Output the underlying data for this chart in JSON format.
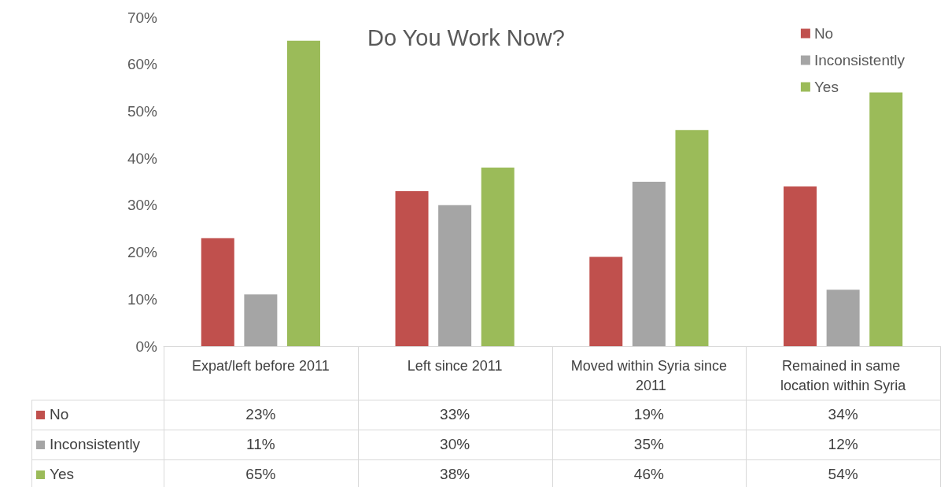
{
  "chart_data": {
    "type": "bar",
    "title": "Do You Work Now?",
    "categories": [
      "Expat/left before 2011",
      "Left since 2011",
      "Moved within Syria since 2011",
      "Remained in same location within Syria"
    ],
    "series": [
      {
        "name": "No",
        "color": "#c0504d",
        "values": [
          23,
          33,
          19,
          34
        ],
        "value_labels": [
          "23%",
          "33%",
          "19%",
          "34%"
        ]
      },
      {
        "name": "Inconsistently",
        "color": "#a5a5a5",
        "values": [
          11,
          30,
          35,
          12
        ],
        "value_labels": [
          "11%",
          "30%",
          "35%",
          "12%"
        ]
      },
      {
        "name": "Yes",
        "color": "#9bbb59",
        "values": [
          65,
          38,
          46,
          54
        ],
        "value_labels": [
          "65%",
          "38%",
          "46%",
          "54%"
        ]
      }
    ],
    "ylim": [
      0,
      70
    ],
    "yticks": [
      {
        "value": 0,
        "label": "0%"
      },
      {
        "value": 10,
        "label": "10%"
      },
      {
        "value": 20,
        "label": "20%"
      },
      {
        "value": 30,
        "label": "30%"
      },
      {
        "value": 40,
        "label": "40%"
      },
      {
        "value": 50,
        "label": "50%"
      },
      {
        "value": 60,
        "label": "60%"
      },
      {
        "value": 70,
        "label": "70%"
      }
    ],
    "grid": false,
    "legend": "top right"
  }
}
